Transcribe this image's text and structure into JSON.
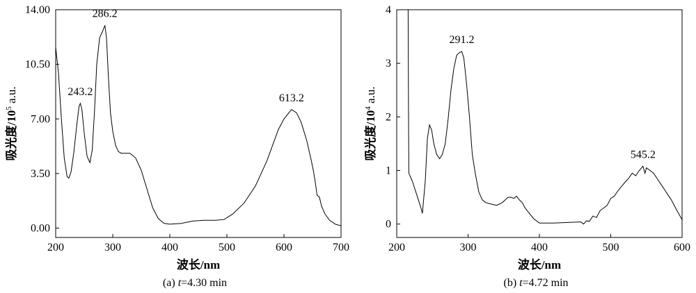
{
  "chart_data": [
    {
      "type": "line",
      "caption": {
        "label": "(a)",
        "var": "t",
        "rest": "=4.30 min"
      },
      "xlabel": "波长/nm",
      "ylabel": {
        "base": "吸光度/10",
        "sup": "5",
        "unit": "a.u."
      },
      "xlim": [
        200,
        700
      ],
      "ylim": [
        -0.6,
        14.0
      ],
      "x_ticks": [
        200,
        300,
        400,
        500,
        600,
        700
      ],
      "x_tick_labels": [
        "200",
        "300",
        "400",
        "500",
        "600",
        "700"
      ],
      "y_ticks": [
        0,
        3.5,
        7,
        10.5,
        14
      ],
      "y_tick_labels": [
        "0.00",
        "3.50",
        "7.00",
        "10.50",
        "14.00"
      ],
      "grid": false,
      "series": [
        {
          "x": [
            200,
            205,
            210,
            215,
            220,
            223,
            227,
            232,
            237,
            241,
            243.2,
            246,
            250,
            255,
            260,
            264,
            268,
            272,
            277,
            282,
            286.2,
            289,
            292,
            296,
            300,
            305,
            310,
            315,
            320,
            330,
            340,
            350,
            360,
            370,
            380,
            390,
            400,
            420,
            440,
            460,
            480,
            495,
            510,
            530,
            550,
            570,
            590,
            600,
            613.2,
            622,
            630,
            640,
            648,
            652,
            655,
            658,
            662,
            666,
            672,
            680,
            690,
            700
          ],
          "y": [
            11.6,
            9.9,
            7.0,
            4.5,
            3.3,
            3.2,
            3.6,
            4.9,
            6.6,
            7.8,
            8.0,
            7.6,
            6.1,
            4.6,
            4.2,
            5.0,
            7.5,
            10.5,
            12.2,
            12.6,
            13.0,
            12.2,
            10.0,
            7.4,
            6.2,
            5.3,
            4.9,
            4.8,
            4.8,
            4.8,
            4.5,
            3.7,
            2.5,
            1.3,
            0.6,
            0.3,
            0.25,
            0.3,
            0.45,
            0.5,
            0.5,
            0.55,
            0.9,
            1.6,
            2.7,
            4.3,
            6.3,
            7.0,
            7.6,
            7.4,
            6.8,
            5.6,
            4.3,
            3.6,
            2.9,
            2.1,
            2.0,
            1.4,
            0.9,
            0.5,
            0.25,
            0.15
          ]
        }
      ],
      "annotations": [
        {
          "text": "243.2",
          "x": 243.2,
          "y": 8.0
        },
        {
          "text": "286.2",
          "x": 286.2,
          "y": 13.0
        },
        {
          "text": "613.2",
          "x": 613.2,
          "y": 7.6
        }
      ]
    },
    {
      "type": "line",
      "caption": {
        "label": "(b)",
        "var": "t",
        "rest": "=4.72 min"
      },
      "xlabel": "波长/nm",
      "ylabel": {
        "base": "吸光度/10",
        "sup": "4",
        "unit": "a.u."
      },
      "xlim": [
        200,
        600
      ],
      "ylim": [
        -0.25,
        4.0
      ],
      "x_ticks": [
        200,
        300,
        400,
        500,
        600
      ],
      "x_tick_labels": [
        "200",
        "300",
        "400",
        "500",
        "600"
      ],
      "y_ticks": [
        0,
        1,
        2,
        3,
        4
      ],
      "y_tick_labels": [
        "0",
        "1",
        "2",
        "3",
        "4"
      ],
      "grid": false,
      "series": [
        {
          "x": [
            216,
            216.5,
            217,
            222,
            228,
            234,
            236,
            240,
            243,
            246,
            249,
            252,
            256,
            260,
            264,
            268,
            272,
            276,
            280,
            284,
            288,
            291.2,
            294,
            298,
            302,
            306,
            310,
            315,
            320,
            325,
            330,
            340,
            348,
            352,
            356,
            360,
            364,
            368,
            372,
            376,
            380,
            386,
            392,
            400,
            420,
            440,
            458,
            462,
            466,
            470,
            475,
            480,
            485,
            490,
            495,
            500,
            505,
            510,
            515,
            520,
            525,
            530,
            535,
            540,
            545.2,
            548,
            550,
            555,
            560,
            565,
            570,
            575,
            580,
            585,
            590,
            595,
            600
          ],
          "y": [
            4.0,
            2.2,
            0.95,
            0.8,
            0.55,
            0.3,
            0.2,
            0.8,
            1.6,
            1.85,
            1.75,
            1.5,
            1.3,
            1.22,
            1.3,
            1.5,
            1.95,
            2.5,
            2.9,
            3.15,
            3.2,
            3.22,
            3.1,
            2.6,
            2.0,
            1.3,
            0.95,
            0.6,
            0.45,
            0.4,
            0.38,
            0.35,
            0.4,
            0.45,
            0.5,
            0.5,
            0.48,
            0.52,
            0.45,
            0.4,
            0.3,
            0.2,
            0.1,
            0.02,
            0.02,
            0.03,
            0.04,
            0.0,
            0.06,
            0.05,
            0.15,
            0.12,
            0.25,
            0.3,
            0.35,
            0.48,
            0.52,
            0.62,
            0.7,
            0.78,
            0.85,
            0.95,
            0.9,
            1.0,
            1.08,
            0.95,
            1.05,
            1.0,
            0.95,
            0.85,
            0.75,
            0.65,
            0.55,
            0.45,
            0.32,
            0.2,
            0.08
          ]
        }
      ],
      "annotations": [
        {
          "text": "291.2",
          "x": 291.2,
          "y": 3.22
        },
        {
          "text": "545.2",
          "x": 545.2,
          "y": 1.08
        }
      ]
    }
  ]
}
